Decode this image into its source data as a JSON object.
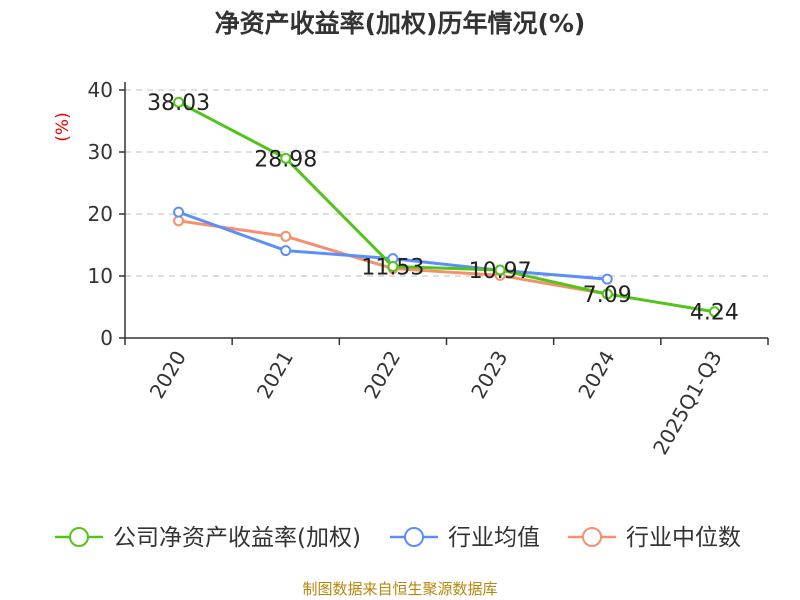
{
  "title": "净资产收益率(加权)历年情况(%)",
  "source": "制图数据来自恒生聚源数据库",
  "colors": {
    "company": "#52c41a",
    "industry_avg": "#5b8ff9",
    "industry_median": "#f6906b",
    "grid": "#cccccc",
    "axis": "#333333",
    "unit": "#e60000"
  },
  "chart_data": {
    "type": "line",
    "title": "净资产收益率(加权)历年情况(%)",
    "ylabel": "(%)",
    "xlabel": "",
    "categories": [
      "2020",
      "2021",
      "2022",
      "2023",
      "2024",
      "2025Q1-Q3"
    ],
    "ylim": [
      0,
      40
    ],
    "yticks": [
      0,
      10,
      20,
      30,
      40
    ],
    "grid": true,
    "legend_position": "bottom",
    "series": [
      {
        "name": "公司净资产收益率(加权)",
        "color": "#52c41a",
        "values": [
          38.03,
          28.98,
          11.53,
          10.97,
          7.09,
          4.24
        ],
        "labels": [
          "38.03",
          "28.98",
          "11.53",
          "10.97",
          "7.09",
          "4.24"
        ]
      },
      {
        "name": "行业均值",
        "color": "#5b8ff9",
        "values": [
          20.3,
          14.1,
          12.8,
          10.9,
          9.5,
          null
        ]
      },
      {
        "name": "行业中位数",
        "color": "#f6906b",
        "values": [
          18.9,
          16.4,
          11.2,
          10.1,
          7.1,
          null
        ]
      }
    ]
  }
}
